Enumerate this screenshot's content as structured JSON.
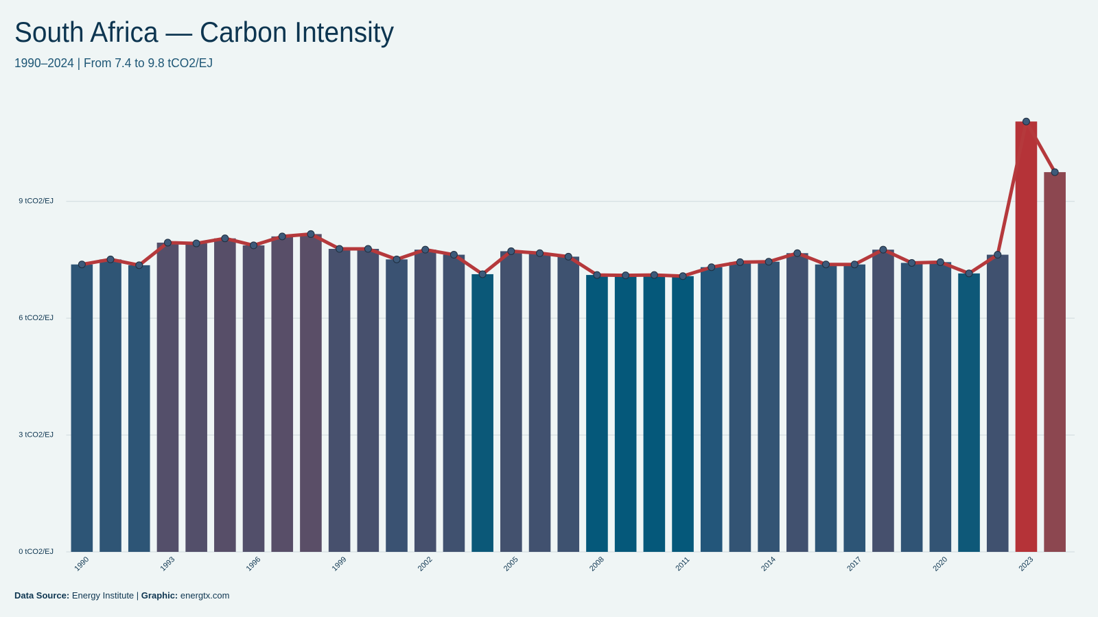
{
  "chart_data": {
    "type": "bar_line",
    "title": "South Africa — Carbon Intensity",
    "subtitle": "1990–2024 | From 7.4 to 9.8 tCO2/EJ",
    "categories": [
      "1990",
      null,
      null,
      "1993",
      null,
      null,
      "1996",
      null,
      null,
      "1999",
      null,
      null,
      "2002",
      null,
      null,
      "2005",
      null,
      null,
      "2008",
      null,
      null,
      "2011",
      null,
      null,
      "2014",
      null,
      null,
      "2017",
      null,
      null,
      "2020",
      null,
      null,
      "2023",
      null
    ],
    "values": [
      7.38,
      7.51,
      7.36,
      7.94,
      7.92,
      8.05,
      7.87,
      8.1,
      8.16,
      7.78,
      7.78,
      7.51,
      7.76,
      7.63,
      7.13,
      7.72,
      7.67,
      7.58,
      7.11,
      7.1,
      7.11,
      7.08,
      7.31,
      7.44,
      7.45,
      7.67,
      7.38,
      7.38,
      7.76,
      7.42,
      7.44,
      7.15,
      7.63,
      11.05,
      9.75
    ],
    "colors": [
      "#2d5576",
      "#2f5575",
      "#2d5576",
      "#544f6a",
      "#534f6a",
      "#574e68",
      "#524f6a",
      "#584e68",
      "#5a4e67",
      "#47506d",
      "#47506d",
      "#3a5272",
      "#46506d",
      "#40516f",
      "#0b5878",
      "#43516e",
      "#41516f",
      "#3e5270",
      "#05587a",
      "#05587a",
      "#05587a",
      "#05587a",
      "#23567a",
      "#335474",
      "#335474",
      "#41516f",
      "#2d5576",
      "#2d5576",
      "#46506d",
      "#305475",
      "#335474",
      "#0e5878",
      "#40516f",
      "#b53338",
      "#8c4750"
    ],
    "line_color": "#b5393c",
    "marker_color": "#3d5a7a",
    "ylim": [
      0,
      11.6
    ],
    "yticks": [
      {
        "value": 0,
        "label": "0 tCO2/EJ"
      },
      {
        "value": 3,
        "label": "3 tCO2/EJ"
      },
      {
        "value": 6,
        "label": "6 tCO2/EJ"
      },
      {
        "value": 9,
        "label": "9 tCO2/EJ"
      }
    ],
    "grid": true,
    "footer": {
      "source_label": "Data Source:",
      "source": "Energy Institute",
      "separator": "|",
      "graphic_label": "Graphic:",
      "graphic": "energtx.com"
    }
  }
}
